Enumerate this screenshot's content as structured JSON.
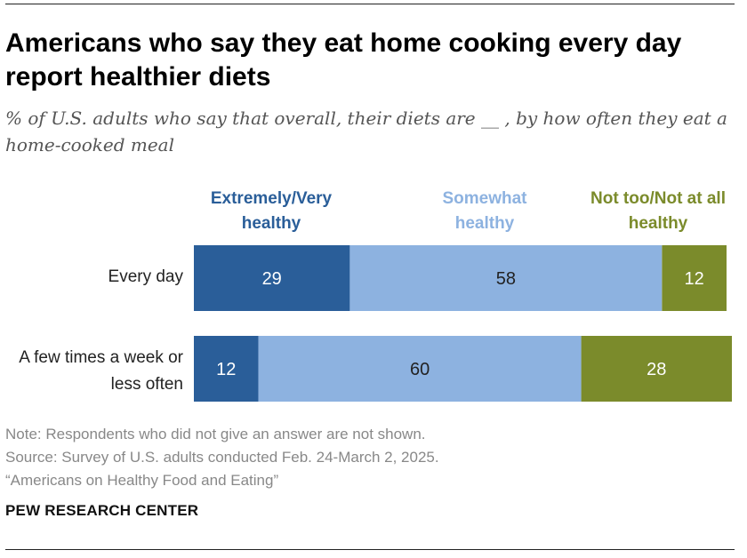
{
  "title": "Americans who say they eat home cooking every day report healthier diets",
  "subtitle": "% of U.S. adults who say that overall, their diets are __ , by how often they eat a home-cooked meal",
  "chart_data": {
    "type": "bar",
    "orientation": "horizontal-stacked",
    "categories": [
      "Every day",
      "A few times a week or less often"
    ],
    "series": [
      {
        "name": "Extremely/Very healthy",
        "values": [
          29,
          12
        ],
        "color": "#2a5e99",
        "label_color": "#ffffff"
      },
      {
        "name": "Somewhat healthy",
        "values": [
          58,
          60
        ],
        "color": "#8db2e0",
        "label_color": "#222222"
      },
      {
        "name": "Not too/Not at all healthy",
        "values": [
          12,
          28
        ],
        "color": "#7b8b2b",
        "label_color": "#ffffff"
      }
    ],
    "xlim": [
      0,
      100
    ],
    "grid": false,
    "legend": "top"
  },
  "notes": {
    "note": "Note: Respondents who did not give an answer are not shown.",
    "source": "Source: Survey of U.S. adults conducted Feb. 24-March 2, 2025.",
    "report": "“Americans on Healthy Food and Eating”"
  },
  "brand": "PEW RESEARCH CENTER"
}
